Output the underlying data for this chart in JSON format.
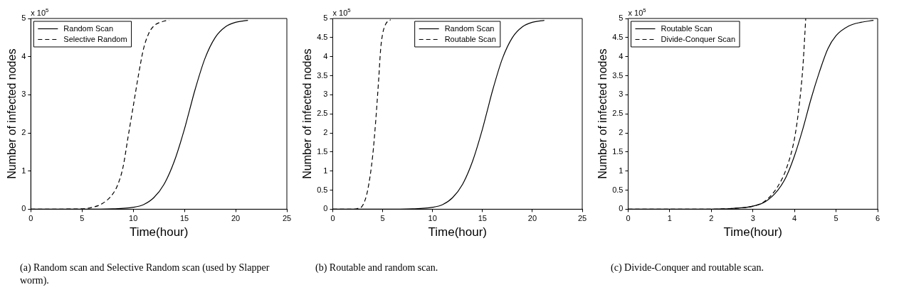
{
  "chart_data": [
    {
      "type": "line",
      "xlabel": "Time(hour)",
      "ylabel": "Number of infected nodes",
      "xlim": [
        0,
        25
      ],
      "xticks": [
        0,
        5,
        10,
        15,
        20,
        25
      ],
      "ylim": [
        0,
        5
      ],
      "yticks": [
        0,
        1,
        2,
        3,
        4,
        5
      ],
      "grid": false,
      "legend": "top left",
      "marker": "none",
      "annotations": [
        "x 10$^{5}$",
        "(a) Random scan and Selective Random scan (used by Slapper worm)."
      ],
      "series": [
        {
          "name": "Random Scan",
          "color": "#000000",
          "line_style": "solid",
          "x": [
            0,
            5,
            8,
            10,
            11,
            12,
            13,
            14,
            15,
            15.5,
            16,
            17,
            18,
            19,
            20,
            21.2
          ],
          "values": [
            0,
            0,
            0.01,
            0.05,
            0.12,
            0.3,
            0.65,
            1.25,
            2.1,
            2.6,
            3.1,
            3.95,
            4.5,
            4.78,
            4.9,
            4.95
          ]
        },
        {
          "name": "Selective Random",
          "color": "#000000",
          "line_style": "dashed",
          "x": [
            0,
            5,
            6,
            7,
            8,
            8.5,
            9,
            9.5,
            10,
            10.5,
            11,
            11.5,
            12,
            13,
            13.5
          ],
          "values": [
            0,
            0.01,
            0.05,
            0.15,
            0.4,
            0.65,
            1.1,
            1.9,
            2.7,
            3.5,
            4.2,
            4.6,
            4.8,
            4.93,
            4.95
          ]
        }
      ]
    },
    {
      "type": "line",
      "xlabel": "Time(hour)",
      "ylabel": "Number of infected nodes",
      "xlim": [
        0,
        25
      ],
      "xticks": [
        0,
        5,
        10,
        15,
        20,
        25
      ],
      "ylim": [
        0,
        5
      ],
      "yticks": [
        0,
        0.5,
        1,
        1.5,
        2,
        2.5,
        3,
        3.5,
        4,
        4.5,
        5
      ],
      "grid": false,
      "legend": "top",
      "marker": "none",
      "annotations": [
        "x 10$^{5}$",
        "(b) Routable and random scan."
      ],
      "series": [
        {
          "name": "Random Scan",
          "color": "#000000",
          "line_style": "solid",
          "x": [
            0,
            5,
            8,
            10,
            11,
            12,
            13,
            14,
            15,
            15.5,
            16,
            17,
            18,
            19,
            20,
            21.2
          ],
          "values": [
            0,
            0,
            0.01,
            0.05,
            0.12,
            0.3,
            0.65,
            1.25,
            2.1,
            2.6,
            3.1,
            3.95,
            4.5,
            4.78,
            4.9,
            4.95
          ]
        },
        {
          "name": "Routable Scan",
          "color": "#000000",
          "line_style": "dashed",
          "x": [
            0,
            2,
            2.5,
            3,
            3.5,
            4,
            4.3,
            4.6,
            4.8,
            5,
            5.3,
            5.8
          ],
          "values": [
            0,
            0,
            0.02,
            0.1,
            0.5,
            1.4,
            2.3,
            3.4,
            4.2,
            4.6,
            4.85,
            4.97
          ]
        }
      ]
    },
    {
      "type": "line",
      "xlabel": "Time(hour)",
      "ylabel": "Number of infected nodes",
      "xlim": [
        0,
        6
      ],
      "xticks": [
        0,
        1,
        2,
        3,
        4,
        5,
        6
      ],
      "ylim": [
        0,
        5
      ],
      "yticks": [
        0,
        0.5,
        1,
        1.5,
        2,
        2.5,
        3,
        3.5,
        4,
        4.5,
        5
      ],
      "grid": false,
      "legend": "top left",
      "marker": "none",
      "annotations": [
        "x 10$^{5}$",
        "(c) Divide-Conquer and routable scan."
      ],
      "series": [
        {
          "name": "Routable Scan",
          "color": "#000000",
          "line_style": "solid",
          "x": [
            0,
            2,
            2.5,
            3,
            3.3,
            3.6,
            3.8,
            4,
            4.2,
            4.4,
            4.6,
            4.8,
            5,
            5.3,
            5.6,
            5.9
          ],
          "values": [
            0,
            0,
            0.02,
            0.08,
            0.2,
            0.5,
            0.85,
            1.4,
            2.1,
            2.9,
            3.6,
            4.2,
            4.55,
            4.8,
            4.9,
            4.95
          ]
        },
        {
          "name": "Divide-Conquer Scan",
          "color": "#000000",
          "line_style": "dashed",
          "x": [
            0,
            2,
            2.5,
            3,
            3.3,
            3.6,
            3.8,
            4,
            4.1,
            4.2,
            4.25,
            4.27
          ],
          "values": [
            0,
            0,
            0.02,
            0.08,
            0.22,
            0.6,
            1.05,
            1.85,
            2.6,
            3.7,
            4.6,
            5
          ]
        }
      ]
    }
  ]
}
